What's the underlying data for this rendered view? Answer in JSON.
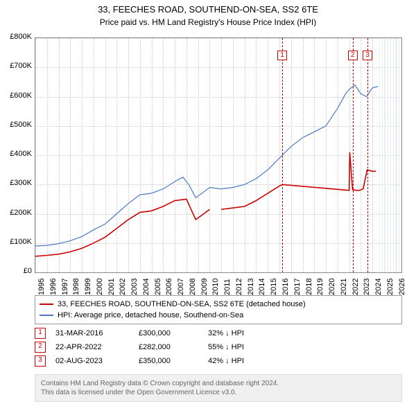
{
  "title": "33, FEECHES ROAD, SOUTHEND-ON-SEA, SS2 6TE",
  "subtitle": "Price paid vs. HM Land Registry's House Price Index (HPI)",
  "chart": {
    "type": "line",
    "xlim": [
      1995,
      2026.5
    ],
    "ylim": [
      0,
      800000
    ],
    "ytick_step": 100000,
    "yticks": [
      "£0",
      "£100K",
      "£200K",
      "£300K",
      "£400K",
      "£500K",
      "£600K",
      "£700K",
      "£800K"
    ],
    "xticks": [
      1995,
      1996,
      1997,
      1998,
      1999,
      2000,
      2001,
      2002,
      2003,
      2004,
      2005,
      2006,
      2007,
      2008,
      2009,
      2010,
      2011,
      2012,
      2013,
      2014,
      2015,
      2016,
      2017,
      2018,
      2019,
      2020,
      2021,
      2022,
      2023,
      2024,
      2025,
      2026
    ],
    "grid_color": "#cccccc",
    "background_color": "#ffffff",
    "series": [
      {
        "name": "property",
        "label": "33, FEECHES ROAD, SOUTHEND-ON-SEA, SS2 6TE (detached house)",
        "color": "#cc0000",
        "line_width": 1.6,
        "points": [
          [
            1995,
            55000
          ],
          [
            1996,
            58000
          ],
          [
            1997,
            62000
          ],
          [
            1998,
            70000
          ],
          [
            1999,
            82000
          ],
          [
            2000,
            100000
          ],
          [
            2001,
            120000
          ],
          [
            2002,
            150000
          ],
          [
            2003,
            180000
          ],
          [
            2004,
            205000
          ],
          [
            2005,
            210000
          ],
          [
            2006,
            225000
          ],
          [
            2007,
            245000
          ],
          [
            2008,
            250000
          ],
          [
            2008.8,
            180000
          ],
          [
            2009.5,
            200000
          ],
          [
            2010,
            215000
          ],
          [
            2011,
            215000
          ],
          [
            2012,
            220000
          ],
          [
            2013,
            225000
          ],
          [
            2014,
            245000
          ],
          [
            2015,
            270000
          ],
          [
            2016,
            295000
          ],
          [
            2016.25,
            300000
          ],
          [
            2022.0,
            280000
          ],
          [
            2022.05,
            410000
          ],
          [
            2022.3,
            282000
          ],
          [
            2022.6,
            280000
          ],
          [
            2022.9,
            280000
          ],
          [
            2023.2,
            285000
          ],
          [
            2023.55,
            350000
          ],
          [
            2023.58,
            350000
          ],
          [
            2024.0,
            345000
          ],
          [
            2024.3,
            345000
          ]
        ],
        "gap_after_index": 16
      },
      {
        "name": "hpi",
        "label": "HPI: Average price, detached house, Southend-on-Sea",
        "color": "#4a78c4",
        "line_width": 1.2,
        "points": [
          [
            1995,
            90000
          ],
          [
            1996,
            92000
          ],
          [
            1997,
            98000
          ],
          [
            1998,
            108000
          ],
          [
            1999,
            122000
          ],
          [
            2000,
            145000
          ],
          [
            2001,
            165000
          ],
          [
            2002,
            200000
          ],
          [
            2003,
            235000
          ],
          [
            2004,
            265000
          ],
          [
            2005,
            270000
          ],
          [
            2006,
            285000
          ],
          [
            2007,
            310000
          ],
          [
            2007.7,
            325000
          ],
          [
            2008.2,
            300000
          ],
          [
            2008.8,
            255000
          ],
          [
            2009.5,
            275000
          ],
          [
            2010,
            290000
          ],
          [
            2011,
            285000
          ],
          [
            2012,
            290000
          ],
          [
            2013,
            300000
          ],
          [
            2014,
            320000
          ],
          [
            2015,
            350000
          ],
          [
            2016,
            390000
          ],
          [
            2017,
            430000
          ],
          [
            2018,
            460000
          ],
          [
            2019,
            480000
          ],
          [
            2020,
            500000
          ],
          [
            2021,
            560000
          ],
          [
            2021.7,
            610000
          ],
          [
            2022,
            625000
          ],
          [
            2022.5,
            640000
          ],
          [
            2023,
            610000
          ],
          [
            2023.5,
            600000
          ],
          [
            2024,
            630000
          ],
          [
            2024.5,
            635000
          ]
        ]
      }
    ],
    "markers": [
      {
        "id": "1",
        "x": 2016.25,
        "date": "31-MAR-2016",
        "price": "£300,000",
        "diff": "32% ↓ HPI"
      },
      {
        "id": "2",
        "x": 2022.3,
        "date": "22-APR-2022",
        "price": "£282,000",
        "diff": "55% ↓ HPI"
      },
      {
        "id": "3",
        "x": 2023.58,
        "date": "02-AUG-2023",
        "price": "£350,000",
        "diff": "42% ↓ HPI"
      }
    ],
    "shaded_future": {
      "from": 2024.6,
      "to": 2026.5
    }
  },
  "legend_title_property": "33, FEECHES ROAD, SOUTHEND-ON-SEA, SS2 6TE (detached house)",
  "legend_title_hpi": "HPI: Average price, detached house, Southend-on-Sea",
  "footnote_l1": "Contains HM Land Registry data © Crown copyright and database right 2024.",
  "footnote_l2": "This data is licensed under the Open Government Licence v3.0."
}
